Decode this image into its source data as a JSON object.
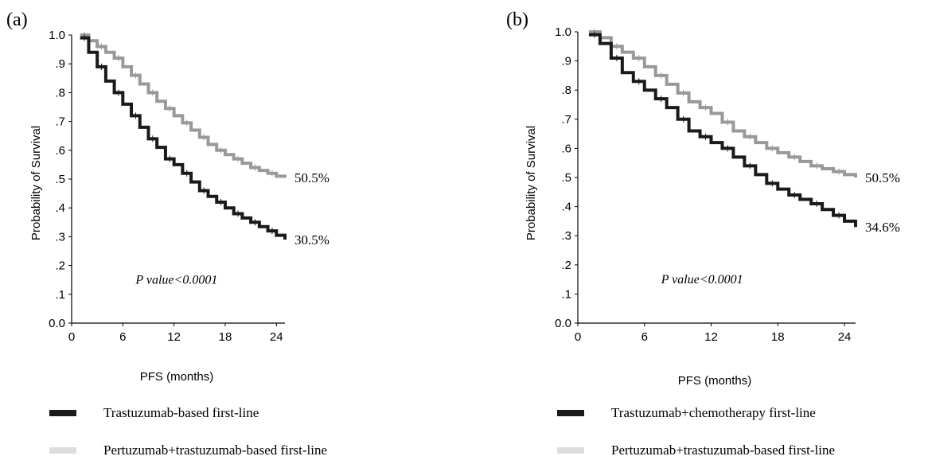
{
  "colors": {
    "series_dark": "#1a1a1a",
    "series_light": "#999999",
    "legend_light": "#dddddd"
  },
  "chart_data": [
    {
      "type": "line",
      "panel_label": "(a)",
      "xlabel": "PFS (months)",
      "ylabel": "Probability of Survival",
      "xlim": [
        0,
        25
      ],
      "ylim": [
        0,
        1.0
      ],
      "x_ticks": [
        "0",
        "6",
        "12",
        "18",
        "24"
      ],
      "y_ticks": [
        "0.0",
        ".1",
        ".2",
        ".3",
        ".4",
        ".5",
        ".6",
        ".7",
        ".8",
        ".9",
        "1.0"
      ],
      "annotation": "P value<0.0001",
      "grid": false,
      "series": [
        {
          "name": "Trastuzumab-based first-line",
          "color": "#1a1a1a",
          "end_label": "30.5%",
          "x": [
            1,
            2,
            3,
            4,
            5,
            6,
            7,
            8,
            9,
            10,
            11,
            12,
            13,
            14,
            15,
            16,
            17,
            18,
            19,
            20,
            21,
            22,
            23,
            24,
            25
          ],
          "y": [
            0.99,
            0.94,
            0.89,
            0.84,
            0.8,
            0.76,
            0.72,
            0.68,
            0.64,
            0.61,
            0.57,
            0.55,
            0.52,
            0.49,
            0.46,
            0.44,
            0.42,
            0.4,
            0.38,
            0.365,
            0.35,
            0.335,
            0.32,
            0.305,
            0.29
          ]
        },
        {
          "name": "Pertuzumab+trastuzumab-based first-line",
          "color": "#999999",
          "end_label": "50.5%",
          "x": [
            1,
            2,
            3,
            4,
            5,
            6,
            7,
            8,
            9,
            10,
            11,
            12,
            13,
            14,
            15,
            16,
            17,
            18,
            19,
            20,
            21,
            22,
            23,
            24,
            25
          ],
          "y": [
            1.0,
            0.98,
            0.96,
            0.94,
            0.92,
            0.89,
            0.86,
            0.83,
            0.8,
            0.77,
            0.745,
            0.72,
            0.695,
            0.67,
            0.645,
            0.62,
            0.6,
            0.585,
            0.57,
            0.555,
            0.54,
            0.53,
            0.52,
            0.51,
            0.505
          ]
        }
      ]
    },
    {
      "type": "line",
      "panel_label": "(b)",
      "xlabel": "PFS (months)",
      "ylabel": "Probability of Survival",
      "xlim": [
        0,
        25
      ],
      "ylim": [
        0,
        1.0
      ],
      "x_ticks": [
        "0",
        "6",
        "12",
        "18",
        "24"
      ],
      "y_ticks": [
        "0.0",
        ".1",
        ".2",
        ".3",
        ".4",
        ".5",
        ".6",
        ".7",
        ".8",
        ".9",
        "1.0"
      ],
      "annotation": "P value<0.0001",
      "grid": false,
      "series": [
        {
          "name": "Trastuzumab+chemotherapy first-line",
          "color": "#1a1a1a",
          "end_label": "34.6%",
          "x": [
            1,
            2,
            3,
            4,
            5,
            6,
            7,
            8,
            9,
            10,
            11,
            12,
            13,
            14,
            15,
            16,
            17,
            18,
            19,
            20,
            21,
            22,
            23,
            24,
            25
          ],
          "y": [
            0.99,
            0.96,
            0.91,
            0.86,
            0.83,
            0.8,
            0.77,
            0.74,
            0.7,
            0.66,
            0.64,
            0.62,
            0.6,
            0.57,
            0.54,
            0.51,
            0.48,
            0.46,
            0.44,
            0.425,
            0.41,
            0.39,
            0.37,
            0.35,
            0.33
          ]
        },
        {
          "name": "Pertuzumab+trastuzumab-based first-line",
          "color": "#999999",
          "end_label": "50.5%",
          "x": [
            1,
            2,
            3,
            4,
            5,
            6,
            7,
            8,
            9,
            10,
            11,
            12,
            13,
            14,
            15,
            16,
            17,
            18,
            19,
            20,
            21,
            22,
            23,
            24,
            25
          ],
          "y": [
            1.0,
            0.98,
            0.95,
            0.93,
            0.91,
            0.88,
            0.85,
            0.82,
            0.79,
            0.76,
            0.74,
            0.72,
            0.69,
            0.66,
            0.64,
            0.62,
            0.6,
            0.585,
            0.57,
            0.555,
            0.54,
            0.53,
            0.52,
            0.51,
            0.5
          ]
        }
      ]
    }
  ]
}
